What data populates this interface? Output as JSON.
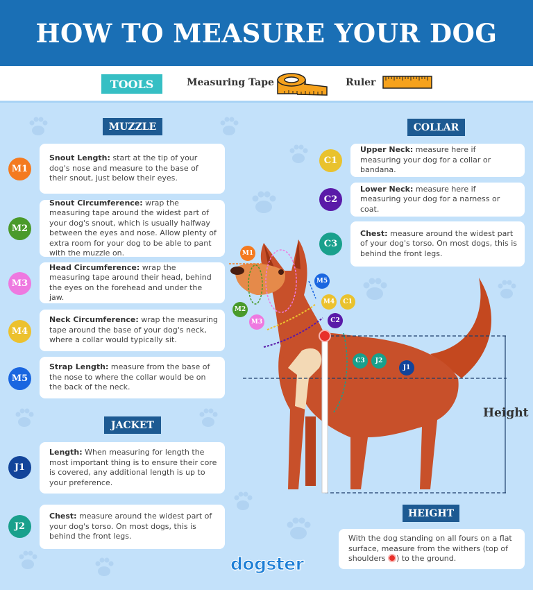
{
  "title": "HOW TO MEASURE YOUR DOG",
  "tools": {
    "badge": "TOOLS",
    "items": [
      {
        "label": "Measuring Tape",
        "icon": "measuring-tape-icon"
      },
      {
        "label": "Ruler",
        "icon": "ruler-icon"
      }
    ]
  },
  "muzzle": {
    "heading": "MUZZLE",
    "items": [
      {
        "code": "M1",
        "color": "#f47a1f",
        "term": "Snout Length:",
        "text": " start at the tip of your dog's nose and measure to the base of their snout, just below their eyes."
      },
      {
        "code": "M2",
        "color": "#4a9a2a",
        "term": "Snout Circumference:",
        "text": " wrap the measuring tape around the widest part of your dog's snout, which is usually halfway between the eyes and nose. Allow plenty of extra room for your dog to be able to pant with the muzzle on."
      },
      {
        "code": "M3",
        "color": "#ee79e0",
        "term": "Head Circumference:",
        "text": " wrap the measuring tape around their head, behind the eyes on the forehead and under the jaw."
      },
      {
        "code": "M4",
        "color": "#ecc12e",
        "term": "Neck Circumference:",
        "text": " wrap the measuring tape around the base of your dog's neck, where a collar would typically sit."
      },
      {
        "code": "M5",
        "color": "#1a66e0",
        "term": "Strap Length:",
        "text": " measure from the base of the nose to where the collar would be on the back of the neck."
      }
    ]
  },
  "jacket": {
    "heading": "JACKET",
    "items": [
      {
        "code": "J1",
        "color": "#12449a",
        "term": "Length:",
        "text": " When measuring for length the most important thing is to ensure their core is covered, any additional length is up to your preference."
      },
      {
        "code": "J2",
        "color": "#19a08c",
        "term": "Chest:",
        "text": " measure around the widest part of your dog's torso. On most dogs, this is behind the front legs."
      }
    ]
  },
  "collar": {
    "heading": "COLLAR",
    "items": [
      {
        "code": "C1",
        "color": "#e9c22e",
        "term": "Upper Neck:",
        "text": " measure here if measuring your dog for a collar or bandana."
      },
      {
        "code": "C2",
        "color": "#5a1aa8",
        "term": "Lower Neck:",
        "text": " measure here if measuring your dog for a narness or coat."
      },
      {
        "code": "C3",
        "color": "#19a08c",
        "term": "Chest:",
        "text": " measure around the widest part of your dog's torso. On most dogs, this is behind the front legs."
      }
    ]
  },
  "height": {
    "heading": "HEIGHT",
    "text_before": "With the dog standing on all fours on a flat surface, measure from the withers (top of shoulders ",
    "text_after": ") to the ground.",
    "diagram_label": "Height"
  },
  "brand": "dogster"
}
